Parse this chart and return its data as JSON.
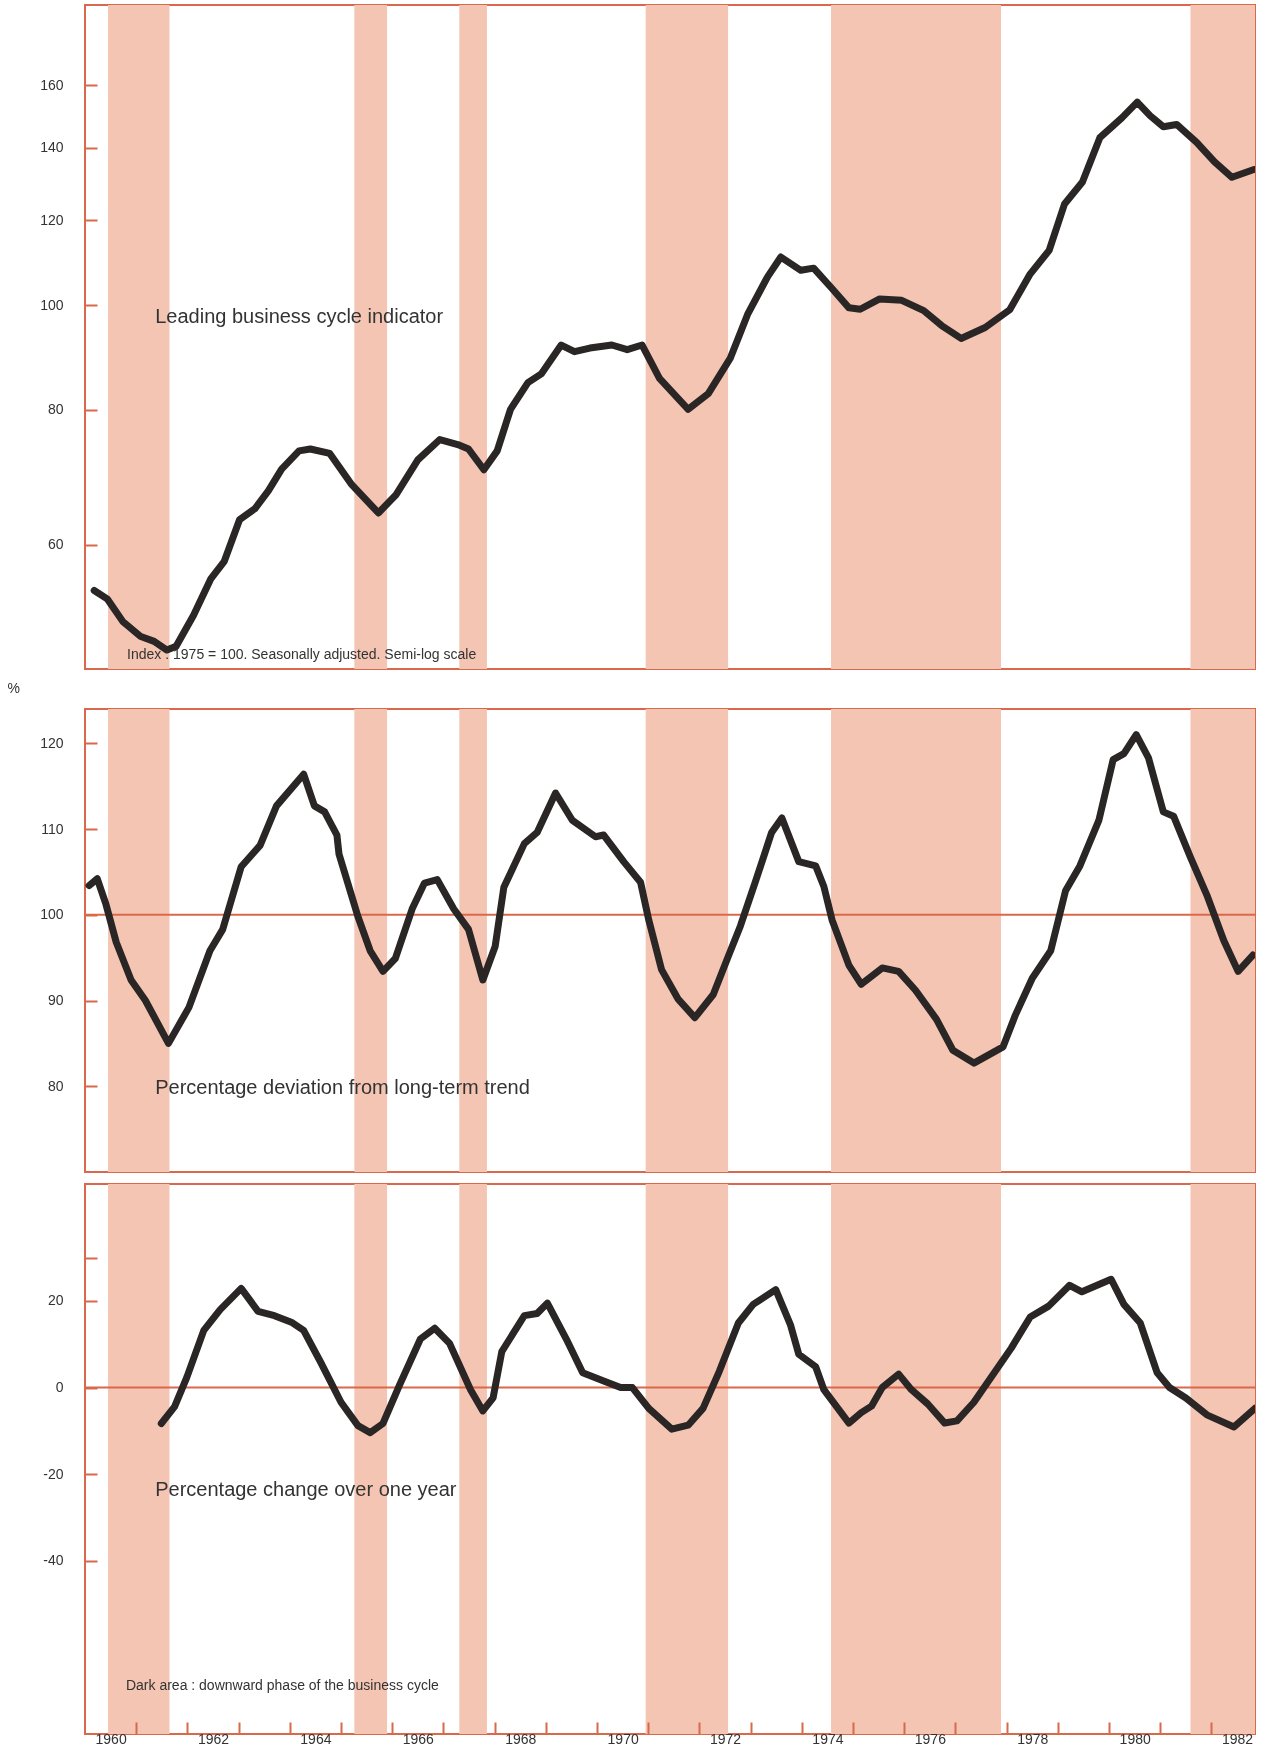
{
  "chart_data": [
    {
      "type": "line",
      "log": true,
      "tick_labels": "y",
      "xlim": [
        1960,
        1982.85
      ],
      "ylim": [
        46,
        190
      ],
      "yticks": [
        60,
        80,
        100,
        120,
        140,
        160
      ],
      "annotations": [
        "Leading business cycle indicator",
        "Index : 1975 = 100.  Seasonally adjusted. Semi-log scale"
      ],
      "bands": [
        {
          "axis": "x",
          "from": 1960.45,
          "to": 1961.65,
          "color": "#f5c5b3"
        },
        {
          "axis": "x",
          "from": 1965.26,
          "to": 1965.9,
          "color": "#f5c5b3"
        },
        {
          "axis": "x",
          "from": 1967.31,
          "to": 1967.85,
          "color": "#f5c5b3"
        },
        {
          "axis": "x",
          "from": 1970.95,
          "to": 1972.56,
          "color": "#f5c5b3"
        },
        {
          "axis": "x",
          "from": 1974.57,
          "to": 1977.89,
          "color": "#f5c5b3"
        },
        {
          "axis": "x",
          "from": 1981.59,
          "to": 1982.85,
          "color": "#f5c5b3"
        }
      ],
      "series": [
        {
          "color": "#2b2626",
          "x": [
            1960.18,
            1960.44,
            1960.74,
            1961.09,
            1961.35,
            1961.6,
            1961.78,
            1962.12,
            1962.46,
            1962.72,
            1963.02,
            1963.32,
            1963.58,
            1963.84,
            1964.18,
            1964.4,
            1964.78,
            1965.21,
            1965.73,
            1966.07,
            1966.5,
            1966.93,
            1967.28,
            1967.49,
            1967.79,
            1968.05,
            1968.31,
            1968.65,
            1968.91,
            1969.3,
            1969.56,
            1969.86,
            1970.29,
            1970.59,
            1970.88,
            1971.22,
            1971.78,
            1972.17,
            1972.6,
            1972.94,
            1973.33,
            1973.59,
            1973.98,
            1974.23,
            1974.58,
            1974.92,
            1975.14,
            1975.52,
            1975.95,
            1976.38,
            1976.73,
            1977.11,
            1977.58,
            1978.06,
            1978.45,
            1978.83,
            1979.13,
            1979.48,
            1979.82,
            1980.25,
            1980.55,
            1980.8,
            1981.06,
            1981.32,
            1981.71,
            1982.06,
            1982.4,
            1982.83
          ],
          "values": [
            54.4,
            53.4,
            50.9,
            49.3,
            48.8,
            47.9,
            48.3,
            51.6,
            55.8,
            57.9,
            63.3,
            64.8,
            67.3,
            70.5,
            73.3,
            73.6,
            72.9,
            68.2,
            64.2,
            66.7,
            71.9,
            75.1,
            74.3,
            73.6,
            70.4,
            73.3,
            80.1,
            84.8,
            86.4,
            91.9,
            90.6,
            91.3,
            91.9,
            91.0,
            91.9,
            85.6,
            80.1,
            82.8,
            89.3,
            98.1,
            106.3,
            110.9,
            107.8,
            108.3,
            103.8,
            99.5,
            99.2,
            101.4,
            101.1,
            98.9,
            95.8,
            93.2,
            95.4,
            99.1,
            106.8,
            112.5,
            124.2,
            130.2,
            143.1,
            149.3,
            154.4,
            150.0,
            146.5,
            147.2,
            141.7,
            135.9,
            131.5,
            133.7
          ]
        }
      ]
    },
    {
      "type": "line",
      "tick_labels": "y",
      "ylabel": "%",
      "xlim": [
        1960,
        1982.85
      ],
      "ylim": [
        70,
        124
      ],
      "yticks": [
        80,
        90,
        100,
        110,
        120
      ],
      "annotations": [
        "Percentage deviation from long-term trend"
      ],
      "ref_lines": [
        {
          "axis": "y",
          "value": 100,
          "color": "#d9694a"
        }
      ],
      "bands": [
        {
          "axis": "x",
          "from": 1960.45,
          "to": 1961.65,
          "color": "#f5c5b3"
        },
        {
          "axis": "x",
          "from": 1965.26,
          "to": 1965.9,
          "color": "#f5c5b3"
        },
        {
          "axis": "x",
          "from": 1967.31,
          "to": 1967.85,
          "color": "#f5c5b3"
        },
        {
          "axis": "x",
          "from": 1970.95,
          "to": 1972.56,
          "color": "#f5c5b3"
        },
        {
          "axis": "x",
          "from": 1974.57,
          "to": 1977.89,
          "color": "#f5c5b3"
        },
        {
          "axis": "x",
          "from": 1981.59,
          "to": 1982.85,
          "color": "#f5c5b3"
        }
      ],
      "series": [
        {
          "color": "#2b2626",
          "x": [
            1960.08,
            1960.24,
            1960.41,
            1960.61,
            1960.9,
            1961.18,
            1961.63,
            1962.03,
            1962.44,
            1962.69,
            1963.05,
            1963.42,
            1963.74,
            1964.27,
            1964.48,
            1964.68,
            1964.92,
            1964.96,
            1965.33,
            1965.57,
            1965.82,
            1966.06,
            1966.39,
            1966.63,
            1966.88,
            1967.2,
            1967.49,
            1967.77,
            1968.01,
            1968.18,
            1968.58,
            1968.83,
            1969.19,
            1969.52,
            1969.97,
            1970.13,
            1970.52,
            1970.85,
            1971.01,
            1971.26,
            1971.58,
            1971.91,
            1972.27,
            1972.56,
            1972.8,
            1973.09,
            1973.41,
            1973.61,
            1973.94,
            1974.27,
            1974.43,
            1974.59,
            1974.92,
            1975.16,
            1975.57,
            1975.89,
            1976.22,
            1976.63,
            1976.95,
            1977.36,
            1977.93,
            1978.17,
            1978.5,
            1978.86,
            1979.15,
            1979.43,
            1979.8,
            1980.08,
            1980.29,
            1980.53,
            1980.77,
            1981.06,
            1981.26,
            1981.59,
            1981.91,
            1982.24,
            1982.52,
            1982.81
          ],
          "values": [
            103.4,
            104.2,
            101.2,
            96.8,
            92.4,
            90.0,
            85.0,
            89.2,
            95.8,
            98.3,
            105.6,
            108.1,
            112.7,
            116.4,
            112.7,
            112.0,
            109.3,
            107.1,
            99.8,
            95.8,
            93.4,
            94.9,
            100.7,
            103.7,
            104.1,
            100.7,
            98.3,
            92.4,
            96.3,
            103.2,
            108.3,
            109.6,
            114.2,
            111.0,
            109.1,
            109.3,
            106.2,
            103.8,
            99.4,
            93.6,
            90.2,
            88.0,
            90.7,
            95.1,
            98.7,
            103.8,
            109.6,
            111.3,
            106.2,
            105.7,
            103.3,
            99.4,
            94.1,
            91.9,
            93.8,
            93.4,
            91.2,
            87.8,
            84.2,
            82.7,
            84.6,
            88.3,
            92.6,
            95.8,
            102.8,
            105.7,
            111.0,
            118.1,
            118.8,
            121.0,
            118.3,
            112.0,
            111.5,
            106.7,
            102.3,
            97.0,
            93.4,
            95.3
          ]
        }
      ]
    },
    {
      "type": "line",
      "xlim": [
        1960,
        1982.85
      ],
      "ylim": [
        -80,
        47
      ],
      "yticks": [
        {
          "value": 30,
          "label": null
        },
        20,
        0,
        -20,
        -40
      ],
      "xticks": [
        {
          "value": 1960.5,
          "label": "1960"
        },
        {
          "value": 1961,
          "label": null
        },
        {
          "value": 1962,
          "label": null
        },
        {
          "value": 1962.5,
          "label": "1962"
        },
        {
          "value": 1963,
          "label": null
        },
        {
          "value": 1964,
          "label": null
        },
        {
          "value": 1964.5,
          "label": "1964"
        },
        {
          "value": 1965,
          "label": null
        },
        {
          "value": 1966,
          "label": null
        },
        {
          "value": 1966.5,
          "label": "1966"
        },
        {
          "value": 1967,
          "label": null
        },
        {
          "value": 1968,
          "label": null
        },
        {
          "value": 1968.5,
          "label": "1968"
        },
        {
          "value": 1969,
          "label": null
        },
        {
          "value": 1970,
          "label": null
        },
        {
          "value": 1970.5,
          "label": "1970"
        },
        {
          "value": 1971,
          "label": null
        },
        {
          "value": 1972,
          "label": null
        },
        {
          "value": 1972.5,
          "label": "1972"
        },
        {
          "value": 1973,
          "label": null
        },
        {
          "value": 1974,
          "label": null
        },
        {
          "value": 1974.5,
          "label": "1974"
        },
        {
          "value": 1975,
          "label": null
        },
        {
          "value": 1976,
          "label": null
        },
        {
          "value": 1976.5,
          "label": "1976"
        },
        {
          "value": 1977,
          "label": null
        },
        {
          "value": 1978,
          "label": null
        },
        {
          "value": 1978.5,
          "label": "1978"
        },
        {
          "value": 1979,
          "label": null
        },
        {
          "value": 1980,
          "label": null
        },
        {
          "value": 1980.5,
          "label": "1980"
        },
        {
          "value": 1981,
          "label": null
        },
        {
          "value": 1982,
          "label": null
        },
        {
          "value": 1982.5,
          "label": "1982"
        }
      ],
      "annotations": [
        "Percentage change over one year",
        "Dark area : downward phase of the business cycle"
      ],
      "ref_lines": [
        {
          "axis": "y",
          "value": 0,
          "color": "#d9694a"
        }
      ],
      "bands": [
        {
          "axis": "x",
          "from": 1960.45,
          "to": 1961.65,
          "color": "#f5c5b3"
        },
        {
          "axis": "x",
          "from": 1965.26,
          "to": 1965.9,
          "color": "#f5c5b3"
        },
        {
          "axis": "x",
          "from": 1967.31,
          "to": 1967.85,
          "color": "#f5c5b3"
        },
        {
          "axis": "x",
          "from": 1970.95,
          "to": 1972.56,
          "color": "#f5c5b3"
        },
        {
          "axis": "x",
          "from": 1974.57,
          "to": 1977.89,
          "color": "#f5c5b3"
        },
        {
          "axis": "x",
          "from": 1981.59,
          "to": 1982.85,
          "color": "#f5c5b3"
        }
      ],
      "series": [
        {
          "color": "#2b2626",
          "x": [
            1961.49,
            1961.75,
            1961.99,
            1962.32,
            1962.64,
            1963.05,
            1963.38,
            1963.7,
            1964.03,
            1964.27,
            1964.6,
            1965.0,
            1965.33,
            1965.57,
            1965.82,
            1966.14,
            1966.55,
            1966.83,
            1967.12,
            1967.53,
            1967.77,
            1967.97,
            1968.14,
            1968.58,
            1968.83,
            1969.03,
            1969.4,
            1969.72,
            1970.13,
            1970.46,
            1970.69,
            1971.01,
            1971.46,
            1971.78,
            1972.07,
            1972.39,
            1972.76,
            1973.05,
            1973.49,
            1973.78,
            1973.94,
            1974.27,
            1974.43,
            1974.92,
            1975.16,
            1975.36,
            1975.57,
            1975.89,
            1976.14,
            1976.46,
            1976.79,
            1977.03,
            1977.36,
            1978.09,
            1978.46,
            1978.82,
            1979.23,
            1979.47,
            1980.04,
            1980.29,
            1980.61,
            1980.94,
            1981.18,
            1981.5,
            1981.91,
            1982.44,
            1982.85
          ],
          "values": [
            -8.3,
            -4.4,
            2.4,
            13.2,
            18.0,
            22.9,
            17.6,
            16.6,
            15.1,
            13.2,
            5.9,
            -3.4,
            -8.8,
            -10.4,
            -8.3,
            0.5,
            11.2,
            13.7,
            10.2,
            -0.5,
            -5.4,
            -2.4,
            8.3,
            16.6,
            17.1,
            19.5,
            11.2,
            3.4,
            1.5,
            0,
            0,
            -4.8,
            -9.6,
            -8.7,
            -4.8,
            3.8,
            14.9,
            19.2,
            22.6,
            14.4,
            7.7,
            4.8,
            -0.5,
            -8.2,
            -5.8,
            -4.3,
            0,
            3.1,
            -0.5,
            -3.8,
            -8.2,
            -7.7,
            -3.4,
            9.1,
            16.3,
            18.8,
            23.6,
            22.1,
            25.0,
            19.2,
            14.9,
            3.4,
            0,
            -2.4,
            -6.3,
            -9.1,
            -4.8
          ]
        }
      ]
    }
  ]
}
